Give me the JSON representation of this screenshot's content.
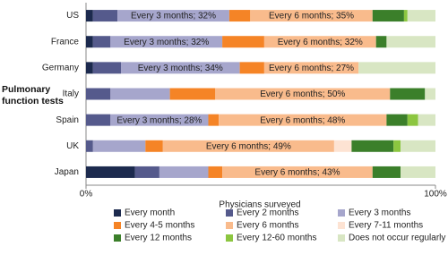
{
  "chart_data": {
    "type": "stacked-bar-horizontal",
    "y_axis_label": "Pulmonary function tests",
    "x_axis_label": "Physicians surveyed",
    "categories": [
      "US",
      "France",
      "Germany",
      "Italy",
      "Spain",
      "UK",
      "Japan"
    ],
    "xlim": [
      0,
      100
    ],
    "xticks": [
      {
        "value": 0,
        "label": "0%"
      },
      {
        "value": 100,
        "label": "100%"
      }
    ],
    "grid": false,
    "legend": "bottom",
    "series": [
      {
        "name": "Every month",
        "color": "#1c2a4e",
        "values": [
          2,
          2,
          2,
          0,
          0,
          0,
          14
        ]
      },
      {
        "name": "Every 2 months",
        "color": "#555a8c",
        "values": [
          7,
          5,
          8,
          7,
          7,
          2,
          7
        ]
      },
      {
        "name": "Every 3 months",
        "color": "#a6a6cc",
        "values": [
          32,
          32,
          34,
          17,
          28,
          15,
          14
        ],
        "value_labels": [
          "Every 3 months; 32%",
          "Every 3 months; 32%",
          "Every 3 months; 34%",
          null,
          "Every 3 months; 28%",
          null,
          null
        ]
      },
      {
        "name": "Every 4-5 months",
        "color": "#f58426",
        "values": [
          6,
          12,
          7,
          13,
          3,
          5,
          4
        ]
      },
      {
        "name": "Every 6 months",
        "color": "#f9bb8c",
        "values": [
          35,
          32,
          27,
          50,
          48,
          49,
          43
        ],
        "value_labels": [
          "Every 6 months; 35%",
          "Every 6 months; 32%",
          "Every 6 months; 27%",
          "Every 6 months; 50%",
          "Every 6 months; 48%",
          "Every 6 months; 49%",
          "Every 6 months; 43%"
        ]
      },
      {
        "name": "Every 7-11 months",
        "color": "#fde3d3",
        "values": [
          0,
          0,
          0,
          0,
          0,
          5,
          0
        ]
      },
      {
        "name": "Every 12 months",
        "color": "#3b7f2a",
        "values": [
          9,
          3,
          0,
          10,
          6,
          12,
          8
        ]
      },
      {
        "name": "Every 12-60 months",
        "color": "#8cc640",
        "values": [
          1,
          0,
          0,
          0,
          3,
          2,
          0
        ]
      },
      {
        "name": "Does not occur regularly",
        "color": "#d8e6c3",
        "values": [
          8,
          14,
          22,
          3,
          5,
          10,
          10
        ]
      }
    ]
  }
}
